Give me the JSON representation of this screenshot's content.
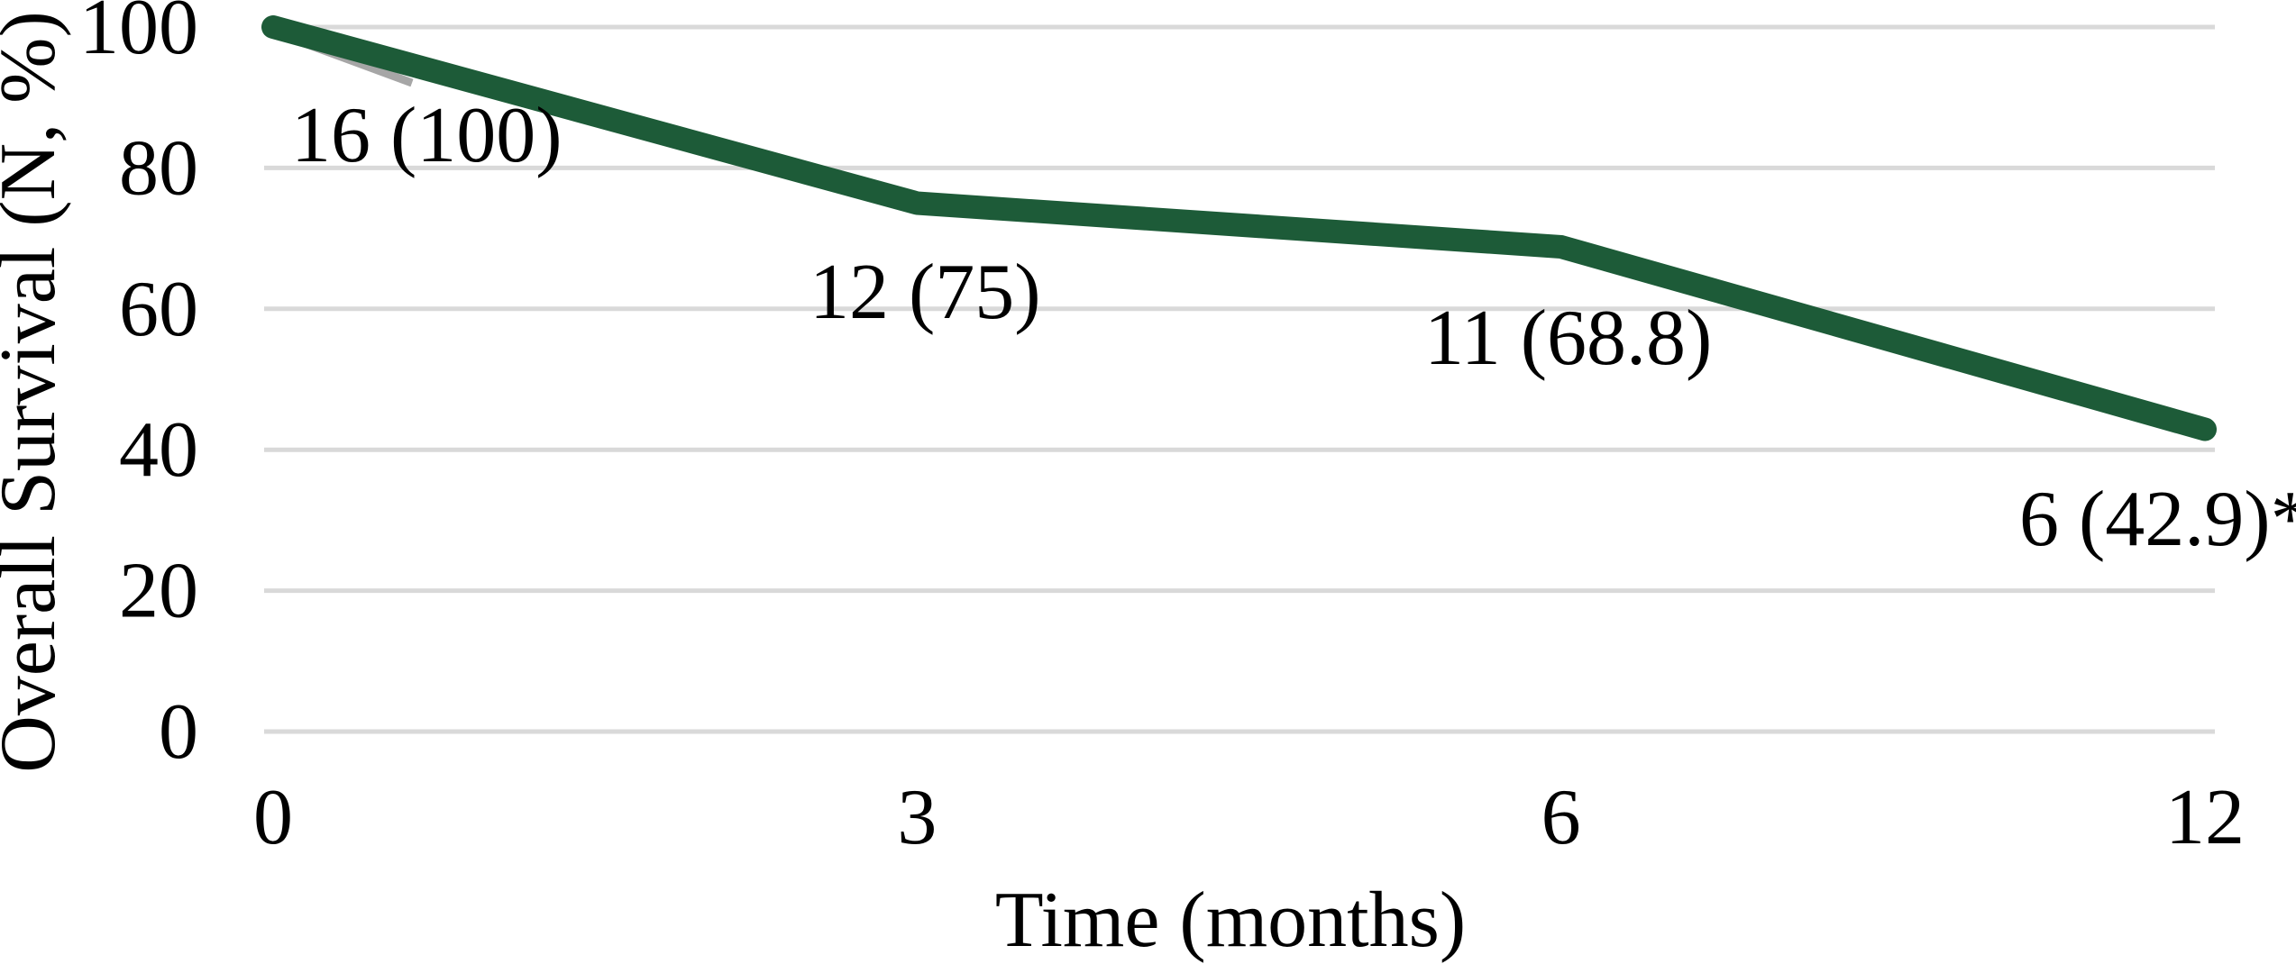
{
  "chart_data": {
    "type": "line",
    "title": "",
    "xlabel": "Time (months)",
    "ylabel": "Overall Survival (N, %)",
    "categories": [
      "0",
      "3",
      "6",
      "12"
    ],
    "x_months": [
      0,
      3,
      6,
      12
    ],
    "series": [
      {
        "name": "overall-survival",
        "values": [
          100,
          75,
          68.8,
          42.9
        ],
        "n_at_timepoint": [
          16,
          12,
          11,
          6
        ],
        "point_labels": [
          "16 (100)",
          "12 (75)",
          "11 (68.8)",
          "6 (42.9)*"
        ],
        "color": "#1d5b38"
      }
    ],
    "yticks": [
      100,
      80,
      60,
      40,
      20,
      0
    ],
    "ylim": [
      0,
      100
    ],
    "grid": "horizontal",
    "legend_position": "none",
    "colors": {
      "line": "#1d5b38",
      "gridline": "#d9d9d9",
      "underlay_segment": "#a6a6a6",
      "text": "#000000",
      "background": "#ffffff"
    }
  }
}
